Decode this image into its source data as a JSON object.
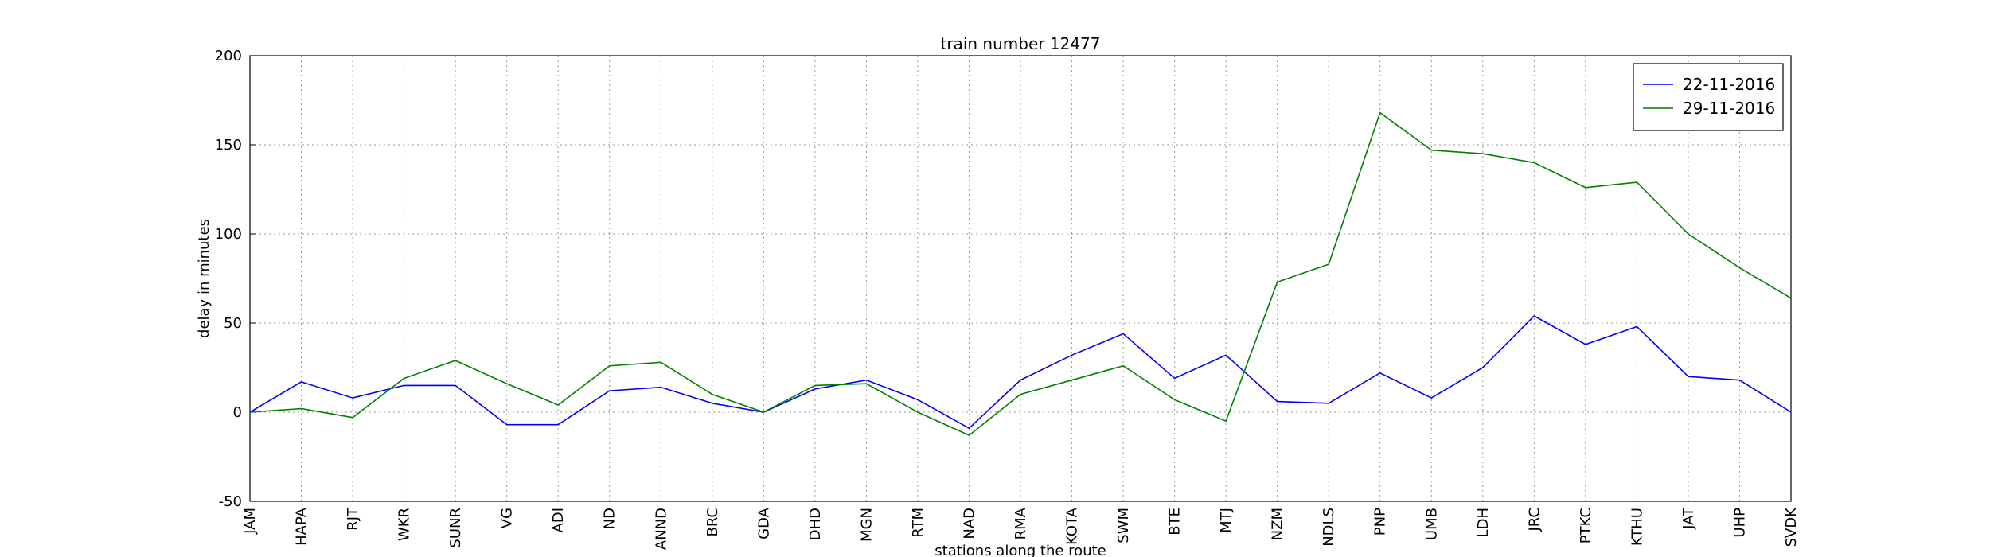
{
  "chart_data": {
    "type": "line",
    "title": "train number 12477",
    "xlabel": "stations along the route",
    "ylabel": "delay in minutes",
    "categories": [
      "JAM",
      "HAPA",
      "RJT",
      "WKR",
      "SUNR",
      "VG",
      "ADI",
      "ND",
      "ANND",
      "BRC",
      "GDA",
      "DHD",
      "MGN",
      "RTM",
      "NAD",
      "RMA",
      "KOTA",
      "SWM",
      "BTE",
      "MTJ",
      "NZM",
      "NDLS",
      "PNP",
      "UMB",
      "LDH",
      "JRC",
      "PTKC",
      "KTHU",
      "JAT",
      "UHP",
      "SVDK"
    ],
    "series": [
      {
        "name": "22-11-2016",
        "color": "#0000ff",
        "values": [
          0,
          17,
          8,
          15,
          15,
          -7,
          -7,
          12,
          14,
          5,
          0,
          13,
          18,
          7,
          -9,
          18,
          32,
          44,
          19,
          32,
          6,
          5,
          22,
          8,
          25,
          54,
          38,
          48,
          20,
          18,
          0
        ]
      },
      {
        "name": "29-11-2016",
        "color": "#008000",
        "values": [
          0,
          2,
          -3,
          19,
          29,
          16,
          4,
          26,
          28,
          10,
          0,
          15,
          16,
          0,
          -13,
          10,
          18,
          26,
          7,
          -5,
          73,
          83,
          168,
          147,
          145,
          140,
          126,
          129,
          100,
          81,
          64
        ]
      }
    ],
    "ylim": [
      -50,
      200
    ],
    "yticks": [
      -50,
      0,
      50,
      100,
      150,
      200
    ],
    "grid": true,
    "legend": "upper right"
  }
}
